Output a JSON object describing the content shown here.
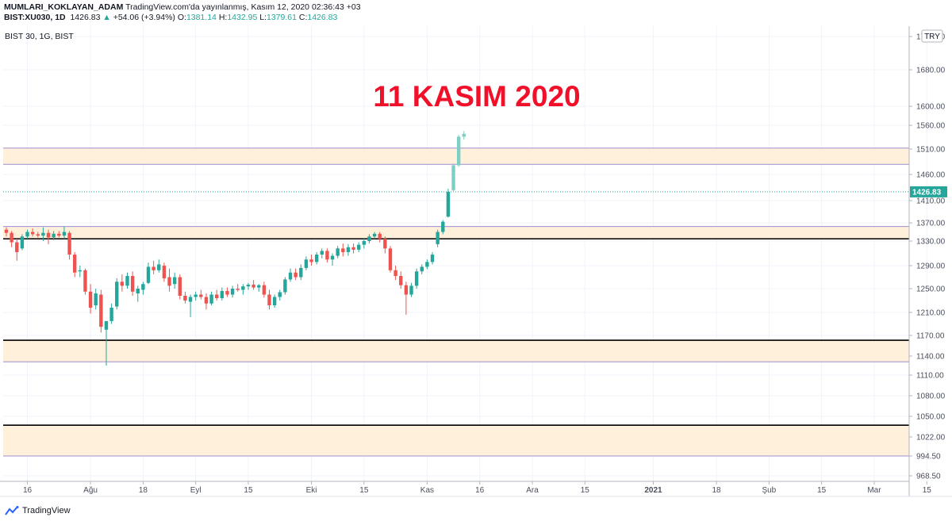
{
  "header": {
    "user": "MUMLARI_KOKLAYAN_ADAM",
    "published": "TradingView.com'da yayınlanmış, Kasım 12, 2020 02:36:43 +03",
    "symbol": "BIST:XU030, 1D",
    "last": "1426.83",
    "change": "+54.06 (+3.94%)",
    "o_label": "O:",
    "o_value": "1381.14",
    "h_label": "H:",
    "h_value": "1432.95",
    "l_label": "L:",
    "l_value": "1379.61",
    "c_label": "C:",
    "c_value": "1426.83"
  },
  "symbol_label": "BIST 30, 1G, BIST",
  "currency": "TRY",
  "footer": {
    "brand": "TradingView"
  },
  "colors": {
    "up": "#26a69a",
    "up_light": "#7ecfc3",
    "down": "#ef5350",
    "zone_fill": "#fff0dc",
    "zone_border": "#9c8fd0",
    "annotation": "#f0102a",
    "last_price_bg": "#26a69a"
  },
  "chart_data": {
    "type": "candlestick",
    "title": "11 KASIM 2020",
    "ylim": [
      968.5,
      1760
    ],
    "y_ticks": [
      968.5,
      994.5,
      1022.0,
      1050.0,
      1080.0,
      1110.0,
      1140.0,
      1170.0,
      1210.0,
      1250.0,
      1290.0,
      1330.0,
      1370.0,
      1410.0,
      1460.0,
      1510.0,
      1560.0,
      1600.0,
      1680.0,
      1770.0
    ],
    "y_tick_labels": [
      "968.50",
      "994.50",
      "1022.00",
      "1050.00",
      "1080.00",
      "1110.00",
      "1140.00",
      "1170.00",
      "1210.00",
      "1250.00",
      "1290.00",
      "1330.00",
      "1370.00",
      "1410.00",
      "1460.00",
      "1510.00",
      "1560.00",
      "1600.00",
      "1680.00",
      "1770.00"
    ],
    "last_price": 1426.83,
    "x_ticks": [
      {
        "label": "16",
        "index": 4
      },
      {
        "label": "Ağu",
        "index": 16
      },
      {
        "label": "18",
        "index": 26
      },
      {
        "label": "Eyl",
        "index": 36
      },
      {
        "label": "15",
        "index": 46
      },
      {
        "label": "Eki",
        "index": 58
      },
      {
        "label": "15",
        "index": 68
      },
      {
        "label": "Kas",
        "index": 80
      },
      {
        "label": "16",
        "index": 90
      },
      {
        "label": "Ara",
        "index": 100
      },
      {
        "label": "15",
        "index": 110
      },
      {
        "label": "2021",
        "index": 123,
        "bold": true
      },
      {
        "label": "18",
        "index": 135
      },
      {
        "label": "Şub",
        "index": 145
      },
      {
        "label": "15",
        "index": 155
      },
      {
        "label": "Mar",
        "index": 165
      },
      {
        "label": "15",
        "index": 175
      }
    ],
    "zones": [
      {
        "low": 1480,
        "high": 1512
      },
      {
        "low": 1335,
        "high": 1362
      },
      {
        "low": 1131,
        "high": 1163
      },
      {
        "low": 994.5,
        "high": 1038
      }
    ],
    "support_lines": [
      1335,
      1163,
      1038
    ],
    "candles": [
      {
        "o": 1355,
        "h": 1360,
        "l": 1340,
        "c": 1348
      },
      {
        "o": 1348,
        "h": 1352,
        "l": 1320,
        "c": 1328
      },
      {
        "o": 1328,
        "h": 1335,
        "l": 1298,
        "c": 1312
      },
      {
        "o": 1318,
        "h": 1345,
        "l": 1315,
        "c": 1340
      },
      {
        "o": 1340,
        "h": 1355,
        "l": 1335,
        "c": 1350
      },
      {
        "o": 1350,
        "h": 1358,
        "l": 1340,
        "c": 1345
      },
      {
        "o": 1345,
        "h": 1350,
        "l": 1338,
        "c": 1342
      },
      {
        "o": 1342,
        "h": 1360,
        "l": 1330,
        "c": 1348
      },
      {
        "o": 1348,
        "h": 1355,
        "l": 1325,
        "c": 1338
      },
      {
        "o": 1338,
        "h": 1352,
        "l": 1332,
        "c": 1346
      },
      {
        "o": 1346,
        "h": 1352,
        "l": 1338,
        "c": 1342
      },
      {
        "o": 1342,
        "h": 1362,
        "l": 1335,
        "c": 1350
      },
      {
        "o": 1348,
        "h": 1352,
        "l": 1300,
        "c": 1308
      },
      {
        "o": 1308,
        "h": 1312,
        "l": 1270,
        "c": 1278
      },
      {
        "o": 1280,
        "h": 1290,
        "l": 1270,
        "c": 1282
      },
      {
        "o": 1282,
        "h": 1285,
        "l": 1240,
        "c": 1245
      },
      {
        "o": 1245,
        "h": 1258,
        "l": 1208,
        "c": 1218
      },
      {
        "o": 1222,
        "h": 1250,
        "l": 1215,
        "c": 1242
      },
      {
        "o": 1240,
        "h": 1248,
        "l": 1175,
        "c": 1185
      },
      {
        "o": 1180,
        "h": 1195,
        "l": 1125,
        "c": 1195
      },
      {
        "o": 1195,
        "h": 1225,
        "l": 1190,
        "c": 1218
      },
      {
        "o": 1220,
        "h": 1268,
        "l": 1215,
        "c": 1262
      },
      {
        "o": 1262,
        "h": 1275,
        "l": 1245,
        "c": 1255
      },
      {
        "o": 1255,
        "h": 1278,
        "l": 1250,
        "c": 1272
      },
      {
        "o": 1272,
        "h": 1280,
        "l": 1238,
        "c": 1245
      },
      {
        "o": 1242,
        "h": 1255,
        "l": 1228,
        "c": 1250
      },
      {
        "o": 1248,
        "h": 1262,
        "l": 1240,
        "c": 1258
      },
      {
        "o": 1260,
        "h": 1295,
        "l": 1258,
        "c": 1288
      },
      {
        "o": 1288,
        "h": 1298,
        "l": 1275,
        "c": 1282
      },
      {
        "o": 1282,
        "h": 1300,
        "l": 1278,
        "c": 1292
      },
      {
        "o": 1290,
        "h": 1295,
        "l": 1262,
        "c": 1268
      },
      {
        "o": 1270,
        "h": 1285,
        "l": 1245,
        "c": 1255
      },
      {
        "o": 1258,
        "h": 1278,
        "l": 1250,
        "c": 1270
      },
      {
        "o": 1270,
        "h": 1275,
        "l": 1232,
        "c": 1238
      },
      {
        "o": 1238,
        "h": 1245,
        "l": 1225,
        "c": 1230
      },
      {
        "o": 1228,
        "h": 1240,
        "l": 1202,
        "c": 1236
      },
      {
        "o": 1236,
        "h": 1245,
        "l": 1230,
        "c": 1240
      },
      {
        "o": 1240,
        "h": 1248,
        "l": 1232,
        "c": 1236
      },
      {
        "o": 1236,
        "h": 1242,
        "l": 1215,
        "c": 1225
      },
      {
        "o": 1225,
        "h": 1245,
        "l": 1222,
        "c": 1240
      },
      {
        "o": 1240,
        "h": 1248,
        "l": 1230,
        "c": 1234
      },
      {
        "o": 1234,
        "h": 1252,
        "l": 1230,
        "c": 1246
      },
      {
        "o": 1246,
        "h": 1252,
        "l": 1236,
        "c": 1240
      },
      {
        "o": 1240,
        "h": 1255,
        "l": 1235,
        "c": 1250
      },
      {
        "o": 1250,
        "h": 1258,
        "l": 1245,
        "c": 1248
      },
      {
        "o": 1248,
        "h": 1258,
        "l": 1240,
        "c": 1254
      },
      {
        "o": 1254,
        "h": 1260,
        "l": 1248,
        "c": 1257
      },
      {
        "o": 1257,
        "h": 1265,
        "l": 1248,
        "c": 1252
      },
      {
        "o": 1252,
        "h": 1258,
        "l": 1245,
        "c": 1256
      },
      {
        "o": 1256,
        "h": 1262,
        "l": 1235,
        "c": 1240
      },
      {
        "o": 1240,
        "h": 1248,
        "l": 1215,
        "c": 1222
      },
      {
        "o": 1222,
        "h": 1240,
        "l": 1218,
        "c": 1236
      },
      {
        "o": 1236,
        "h": 1248,
        "l": 1230,
        "c": 1244
      },
      {
        "o": 1244,
        "h": 1270,
        "l": 1240,
        "c": 1266
      },
      {
        "o": 1266,
        "h": 1285,
        "l": 1262,
        "c": 1278
      },
      {
        "o": 1278,
        "h": 1285,
        "l": 1265,
        "c": 1270
      },
      {
        "o": 1270,
        "h": 1292,
        "l": 1265,
        "c": 1286
      },
      {
        "o": 1286,
        "h": 1305,
        "l": 1282,
        "c": 1300
      },
      {
        "o": 1300,
        "h": 1308,
        "l": 1290,
        "c": 1296
      },
      {
        "o": 1296,
        "h": 1312,
        "l": 1292,
        "c": 1308
      },
      {
        "o": 1308,
        "h": 1318,
        "l": 1302,
        "c": 1314
      },
      {
        "o": 1314,
        "h": 1318,
        "l": 1295,
        "c": 1300
      },
      {
        "o": 1300,
        "h": 1310,
        "l": 1290,
        "c": 1306
      },
      {
        "o": 1306,
        "h": 1322,
        "l": 1302,
        "c": 1318
      },
      {
        "o": 1318,
        "h": 1326,
        "l": 1305,
        "c": 1312
      },
      {
        "o": 1312,
        "h": 1325,
        "l": 1306,
        "c": 1320
      },
      {
        "o": 1320,
        "h": 1326,
        "l": 1310,
        "c": 1316
      },
      {
        "o": 1316,
        "h": 1328,
        "l": 1312,
        "c": 1324
      },
      {
        "o": 1324,
        "h": 1335,
        "l": 1318,
        "c": 1330
      },
      {
        "o": 1330,
        "h": 1345,
        "l": 1326,
        "c": 1340
      },
      {
        "o": 1340,
        "h": 1350,
        "l": 1335,
        "c": 1346
      },
      {
        "o": 1346,
        "h": 1350,
        "l": 1328,
        "c": 1335
      },
      {
        "o": 1335,
        "h": 1340,
        "l": 1310,
        "c": 1318
      },
      {
        "o": 1318,
        "h": 1322,
        "l": 1278,
        "c": 1282
      },
      {
        "o": 1282,
        "h": 1290,
        "l": 1265,
        "c": 1272
      },
      {
        "o": 1272,
        "h": 1280,
        "l": 1250,
        "c": 1256
      },
      {
        "o": 1256,
        "h": 1262,
        "l": 1206,
        "c": 1240
      },
      {
        "o": 1240,
        "h": 1260,
        "l": 1236,
        "c": 1255
      },
      {
        "o": 1255,
        "h": 1285,
        "l": 1250,
        "c": 1280
      },
      {
        "o": 1280,
        "h": 1292,
        "l": 1275,
        "c": 1288
      },
      {
        "o": 1288,
        "h": 1300,
        "l": 1284,
        "c": 1296
      },
      {
        "o": 1296,
        "h": 1312,
        "l": 1292,
        "c": 1308
      },
      {
        "o": 1325,
        "h": 1355,
        "l": 1320,
        "c": 1350
      },
      {
        "o": 1350,
        "h": 1375,
        "l": 1345,
        "c": 1372
      },
      {
        "o": 1381.14,
        "h": 1432.95,
        "l": 1379.61,
        "c": 1426.83
      },
      {
        "o": 1430,
        "h": 1482,
        "l": 1426,
        "c": 1478
      },
      {
        "o": 1478,
        "h": 1540,
        "l": 1475,
        "c": 1536
      },
      {
        "o": 1536,
        "h": 1548,
        "l": 1530,
        "c": 1542
      }
    ]
  }
}
